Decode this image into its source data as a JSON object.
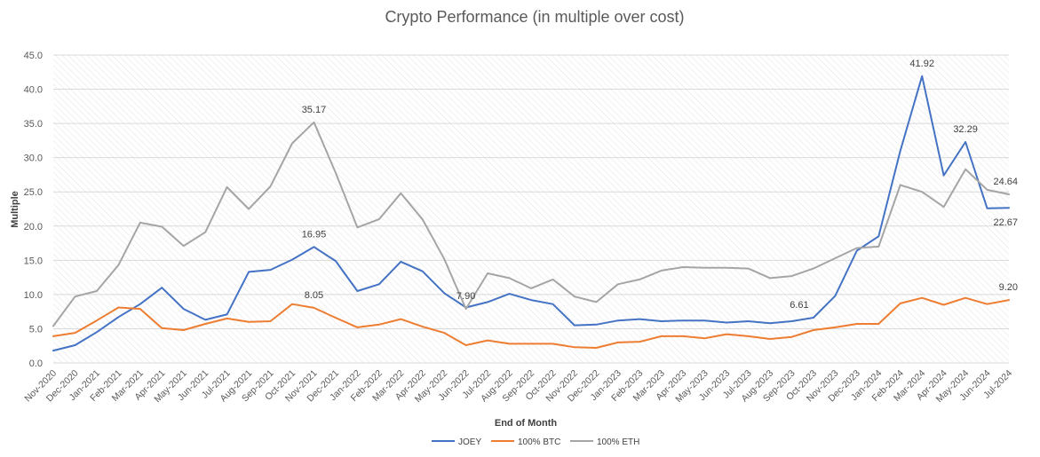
{
  "chart_data": {
    "type": "line",
    "title": "Crypto Performance (in multiple over cost)",
    "xlabel": "End of Month",
    "ylabel": "Multiple",
    "ylim": [
      0,
      45
    ],
    "yticks": [
      "0.0",
      "5.0",
      "10.0",
      "15.0",
      "20.0",
      "25.0",
      "30.0",
      "35.0",
      "40.0",
      "45.0"
    ],
    "grid": true,
    "legend_position": "bottom",
    "categories": [
      "Nov-2020",
      "Dec-2020",
      "Jan-2021",
      "Feb-2021",
      "Mar-2021",
      "Apr-2021",
      "May-2021",
      "Jun-2021",
      "Jul-2021",
      "Aug-2021",
      "Sep-2021",
      "Oct-2021",
      "Nov-2021",
      "Dec-2021",
      "Jan-2022",
      "Feb-2022",
      "Mar-2022",
      "Apr-2022",
      "May-2022",
      "Jun-2022",
      "Jul-2022",
      "Aug-2022",
      "Sep-2022",
      "Oct-2022",
      "Nov-2022",
      "Dec-2022",
      "Jan-2023",
      "Feb-2023",
      "Mar-2023",
      "Apr-2023",
      "May-2023",
      "Jun-2023",
      "Jul-2023",
      "Aug-2023",
      "Sep-2023",
      "Oct-2023",
      "Nov-2023",
      "Dec-2023",
      "Jan-2024",
      "Feb-2024",
      "Mar-2024",
      "Apr-2024",
      "May-2024",
      "Jun-2024",
      "Jul-2024"
    ],
    "series": [
      {
        "name": "JOEY",
        "color": "#4472C4",
        "values": [
          1.8,
          2.6,
          4.5,
          6.7,
          8.6,
          11.0,
          7.9,
          6.3,
          7.1,
          13.3,
          13.6,
          15.1,
          16.95,
          14.9,
          10.5,
          11.5,
          14.8,
          13.4,
          10.2,
          8.1,
          8.9,
          10.1,
          9.2,
          8.6,
          5.5,
          5.6,
          6.2,
          6.4,
          6.1,
          6.2,
          6.2,
          5.9,
          6.1,
          5.8,
          6.1,
          6.61,
          9.8,
          16.4,
          18.5,
          31.0,
          41.92,
          27.4,
          32.29,
          22.6,
          22.67
        ]
      },
      {
        "name": "100% BTC",
        "color": "#ED7D31",
        "values": [
          3.9,
          4.4,
          6.2,
          8.1,
          7.9,
          5.1,
          4.8,
          5.7,
          6.5,
          6.0,
          6.1,
          8.6,
          8.05,
          6.6,
          5.2,
          5.6,
          6.4,
          5.3,
          4.4,
          2.6,
          3.3,
          2.8,
          2.8,
          2.8,
          2.3,
          2.2,
          3.0,
          3.1,
          3.9,
          3.9,
          3.6,
          4.2,
          3.9,
          3.5,
          3.8,
          4.8,
          5.2,
          5.7,
          5.7,
          8.7,
          9.5,
          8.5,
          9.5,
          8.6,
          9.2
        ]
      },
      {
        "name": "100% ETH",
        "color": "#A5A5A5",
        "values": [
          5.4,
          9.7,
          10.5,
          14.3,
          20.5,
          19.9,
          17.1,
          19.1,
          25.7,
          22.5,
          25.8,
          32.1,
          35.17,
          27.8,
          19.8,
          21.0,
          24.8,
          21.0,
          15.2,
          7.9,
          13.1,
          12.4,
          10.9,
          12.2,
          9.7,
          8.9,
          11.5,
          12.2,
          13.5,
          14.0,
          13.9,
          13.9,
          13.8,
          12.4,
          12.7,
          13.8,
          15.3,
          16.8,
          17.0,
          26.0,
          25.0,
          22.8,
          28.3,
          25.3,
          24.64
        ]
      }
    ],
    "data_labels": [
      {
        "series": 2,
        "index": 12,
        "text": "35.17",
        "pos": "above"
      },
      {
        "series": 0,
        "index": 12,
        "text": "16.95",
        "pos": "above"
      },
      {
        "series": 1,
        "index": 12,
        "text": "8.05",
        "pos": "above"
      },
      {
        "series": 2,
        "index": 19,
        "text": "7.90",
        "pos": "above"
      },
      {
        "series": 0,
        "index": 35,
        "text": "6.61",
        "pos": "above-left"
      },
      {
        "series": 0,
        "index": 40,
        "text": "41.92",
        "pos": "above"
      },
      {
        "series": 0,
        "index": 42,
        "text": "32.29",
        "pos": "above"
      },
      {
        "series": 2,
        "index": 44,
        "text": "24.64",
        "pos": "above"
      },
      {
        "series": 0,
        "index": 44,
        "text": "22.67",
        "pos": "below"
      },
      {
        "series": 1,
        "index": 44,
        "text": "9.20",
        "pos": "above"
      }
    ]
  }
}
